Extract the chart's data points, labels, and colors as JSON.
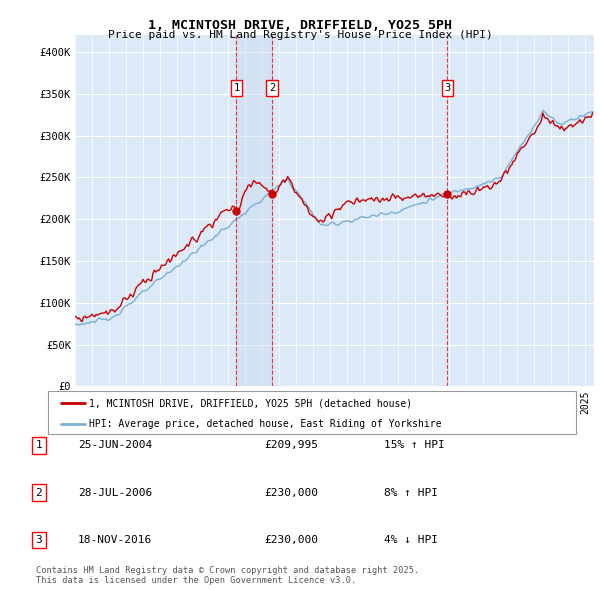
{
  "title1": "1, MCINTOSH DRIVE, DRIFFIELD, YO25 5PH",
  "title2": "Price paid vs. HM Land Registry's House Price Index (HPI)",
  "ylim": [
    0,
    420000
  ],
  "yticks": [
    0,
    50000,
    100000,
    150000,
    200000,
    250000,
    300000,
    350000,
    400000
  ],
  "ytick_labels": [
    "£0",
    "£50K",
    "£100K",
    "£150K",
    "£200K",
    "£250K",
    "£300K",
    "£350K",
    "£400K"
  ],
  "bg_color": "#dce9f7",
  "grid_color": "#ffffff",
  "line_color_red": "#cc0000",
  "line_color_blue": "#7bafd4",
  "shade_color": "#ccddf0",
  "sale_decimal_years": [
    2004.482,
    2006.572,
    2016.882
  ],
  "sale_prices": [
    209995,
    230000,
    230000
  ],
  "sale_labels": [
    "1",
    "2",
    "3"
  ],
  "legend_label_red": "1, MCINTOSH DRIVE, DRIFFIELD, YO25 5PH (detached house)",
  "legend_label_blue": "HPI: Average price, detached house, East Riding of Yorkshire",
  "table_entries": [
    {
      "num": "1",
      "date": "25-JUN-2004",
      "price": "£209,995",
      "change": "15% ↑ HPI"
    },
    {
      "num": "2",
      "date": "28-JUL-2006",
      "price": "£230,000",
      "change": "8% ↑ HPI"
    },
    {
      "num": "3",
      "date": "18-NOV-2016",
      "price": "£230,000",
      "change": "4% ↓ HPI"
    }
  ],
  "footnote": "Contains HM Land Registry data © Crown copyright and database right 2025.\nThis data is licensed under the Open Government Licence v3.0.",
  "xlim_start": 1995.0,
  "xlim_end": 2025.5
}
